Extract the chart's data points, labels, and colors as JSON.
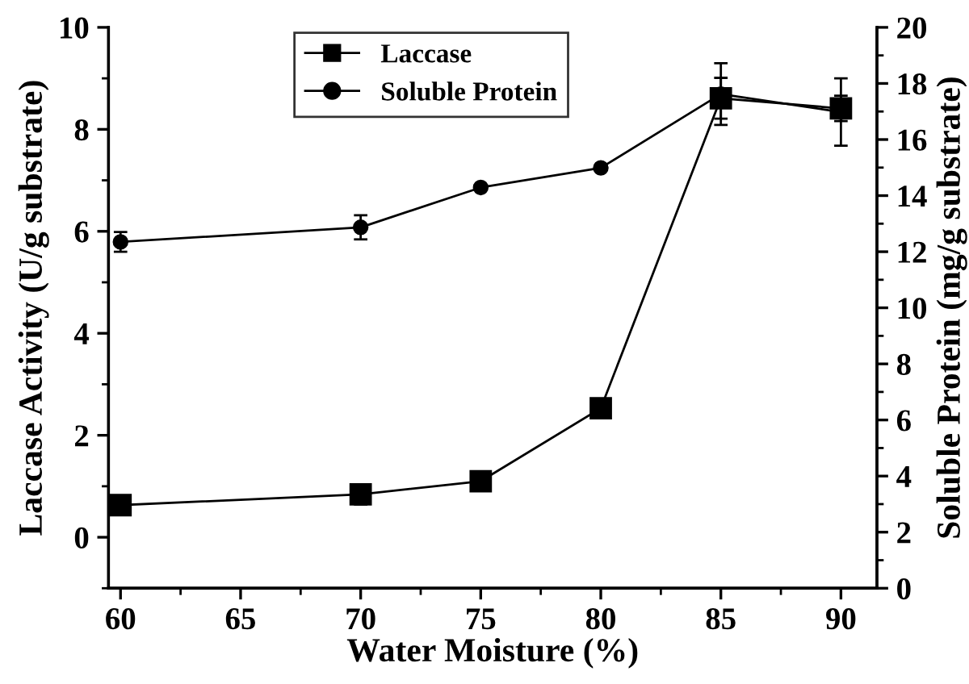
{
  "chart_data": {
    "type": "line",
    "xlabel": "Water Moisture (%)",
    "ylabel": "Laccase Activity (U/g substrate)",
    "y2label": "Soluble Protein (mg/g substrate)",
    "x": [
      60,
      70,
      75,
      80,
      85,
      90
    ],
    "series": [
      {
        "name": "Laccase",
        "color": "#000000",
        "marker": "square",
        "values": [
          0.63,
          0.84,
          1.1,
          2.53,
          8.61,
          8.41
        ],
        "errors": [
          null,
          0.2,
          null,
          0.1,
          0.4,
          0.25
        ]
      },
      {
        "name": "Soluble Protein",
        "color": "#000000",
        "marker": "circle",
        "axis": "y2",
        "values": [
          12.35,
          12.87,
          14.29,
          14.99,
          17.62,
          16.98
        ],
        "errors": [
          0.35,
          0.43,
          null,
          null,
          1.1,
          1.2
        ]
      }
    ],
    "xlim": [
      59.5,
      91.5
    ],
    "xticks": [
      60,
      {
        "value": 62.5,
        "label": null
      },
      65,
      {
        "value": 67.5,
        "label": null
      },
      70,
      {
        "value": 72.5,
        "label": null
      },
      75,
      {
        "value": 77.5,
        "label": null
      },
      80,
      {
        "value": 82.5,
        "label": null
      },
      85,
      {
        "value": 87.5,
        "label": null
      },
      90
    ],
    "ylim": [
      -1,
      10
    ],
    "yticks": [
      {
        "value": -1,
        "label": null
      },
      0,
      {
        "value": 1,
        "label": null
      },
      2,
      {
        "value": 3,
        "label": null
      },
      4,
      {
        "value": 5,
        "label": null
      },
      6,
      {
        "value": 7,
        "label": null
      },
      8,
      {
        "value": 9,
        "label": null
      },
      10
    ],
    "y2lim": [
      0,
      20
    ],
    "y2ticks": [
      0,
      {
        "value": 1,
        "label": null
      },
      2,
      {
        "value": 3,
        "label": null
      },
      4,
      {
        "value": 5,
        "label": null
      },
      6,
      {
        "value": 7,
        "label": null
      },
      8,
      {
        "value": 9,
        "label": null
      },
      10,
      {
        "value": 11,
        "label": null
      },
      12,
      {
        "value": 13,
        "label": null
      },
      14,
      {
        "value": 15,
        "label": null
      },
      16,
      {
        "value": 17,
        "label": null
      },
      18,
      {
        "value": 19,
        "label": null
      },
      20
    ],
    "legend": "top",
    "grid": false,
    "line_style": "solid"
  }
}
